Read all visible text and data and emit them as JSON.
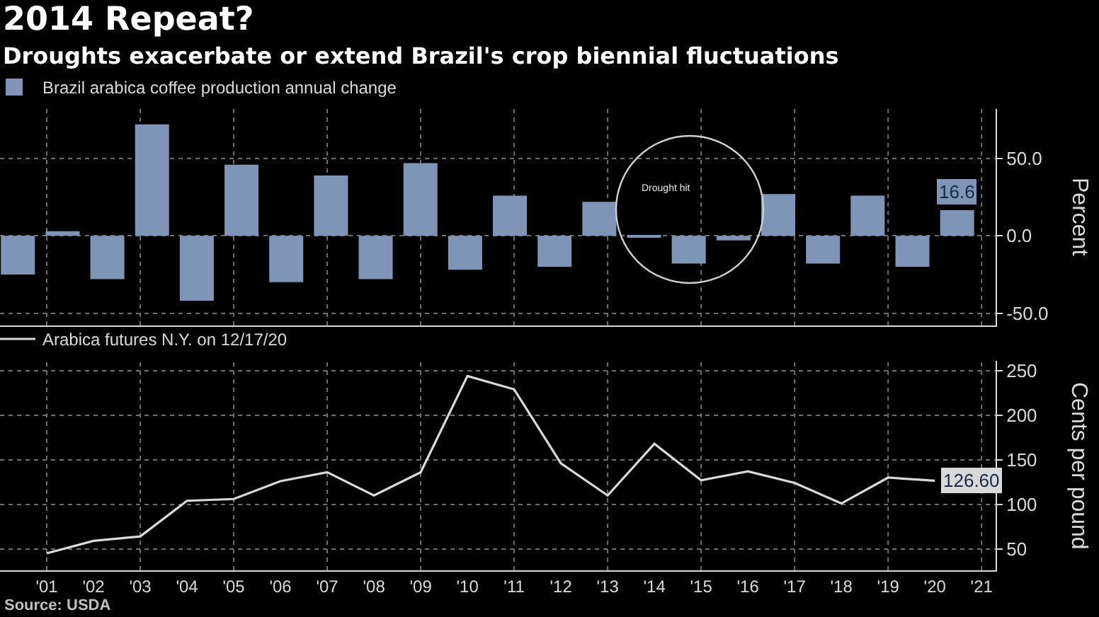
{
  "chart_data": [
    {
      "type": "bar",
      "title": "2014 Repeat?",
      "subtitle": "Droughts exacerbate or extend Brazil's crop biennial fluctuations",
      "ylabel": "Percent",
      "categories": [
        null,
        null,
        null,
        null,
        null,
        null,
        null,
        null,
        null,
        null,
        null,
        null,
        null,
        null,
        null,
        null,
        null,
        null,
        null,
        null,
        null,
        null
      ],
      "series": [
        {
          "name": "Brazil arabica coffee production annual change",
          "color": "#7f95b8",
          "values": [
            -25,
            3,
            -28,
            72,
            -42,
            46,
            -30,
            39,
            -28,
            47,
            -22,
            26,
            -20,
            22,
            -1,
            -18,
            -3,
            27,
            -18,
            26,
            -20,
            16.6
          ],
          "value_labels": [
            null,
            null,
            null,
            null,
            null,
            null,
            null,
            null,
            null,
            null,
            null,
            null,
            null,
            null,
            null,
            null,
            null,
            null,
            null,
            null,
            null,
            "16.6"
          ]
        }
      ],
      "ylim": [
        -58,
        82
      ],
      "yticks": [
        {
          "value": -50,
          "label": "-50.0"
        },
        {
          "value": 0,
          "label": "0.0"
        },
        {
          "value": 50,
          "label": "50.0"
        }
      ],
      "annotations": [
        "Drought hit"
      ],
      "grid": true,
      "legend": "top left",
      "tick_labels": "y"
    },
    {
      "type": "line",
      "ylabel": "Cents per pound",
      "x": [
        2001,
        2002,
        2003,
        2004,
        2005,
        2006,
        2007,
        2008,
        2009,
        2010,
        2011,
        2012,
        2013,
        2014,
        2015,
        2016,
        2017,
        2018,
        2019,
        2020
      ],
      "series": [
        {
          "name": "Arabica futures N.Y. on 12/17/20",
          "color": "#d9d9d9",
          "values": [
            45,
            59,
            64,
            104,
            106,
            126,
            136,
            110,
            136,
            244,
            229,
            146,
            110,
            168,
            127,
            137,
            124,
            101,
            130,
            126.6
          ],
          "value_labels": [
            null,
            null,
            null,
            null,
            null,
            null,
            null,
            null,
            null,
            null,
            null,
            null,
            null,
            null,
            null,
            null,
            null,
            null,
            null,
            "126.60"
          ]
        }
      ],
      "xlim": [
        2000,
        2021.3
      ],
      "xticks": [
        {
          "value": 2001,
          "label": "'01"
        },
        {
          "value": 2002,
          "label": "'02"
        },
        {
          "value": 2003,
          "label": "'03"
        },
        {
          "value": 2004,
          "label": "'04"
        },
        {
          "value": 2005,
          "label": "'05"
        },
        {
          "value": 2006,
          "label": "'06"
        },
        {
          "value": 2007,
          "label": "'07"
        },
        {
          "value": 2008,
          "label": "'08"
        },
        {
          "value": 2009,
          "label": "'09"
        },
        {
          "value": 2010,
          "label": "'10"
        },
        {
          "value": 2011,
          "label": "'11"
        },
        {
          "value": 2012,
          "label": "'12"
        },
        {
          "value": 2013,
          "label": "'13"
        },
        {
          "value": 2014,
          "label": "'14"
        },
        {
          "value": 2015,
          "label": "'15"
        },
        {
          "value": 2016,
          "label": "'16"
        },
        {
          "value": 2017,
          "label": "'17"
        },
        {
          "value": 2018,
          "label": "'18"
        },
        {
          "value": 2019,
          "label": "'19"
        },
        {
          "value": 2020,
          "label": "'20"
        },
        {
          "value": 2021,
          "label": "'21"
        }
      ],
      "ylim": [
        26,
        261
      ],
      "yticks": [
        50,
        100,
        150,
        200,
        250
      ],
      "annotations": [
        "Source: USDA"
      ],
      "grid": true,
      "legend": "top left"
    }
  ]
}
